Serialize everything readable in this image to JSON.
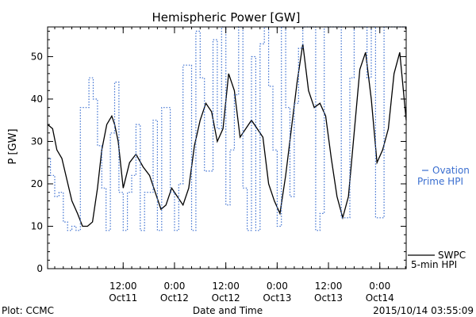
{
  "chart_data": {
    "type": "line",
    "title": "Hemispheric Power [GW]",
    "xlabel": "Date and Time",
    "ylabel": "P [GW]",
    "xlim": [
      "2015-10-10T18:20",
      "2015-10-14T06:10"
    ],
    "ylim": [
      0,
      57
    ],
    "y_ticks": [
      0,
      10,
      20,
      30,
      40,
      50
    ],
    "x_ticks": [
      {
        "time": "2015-10-11T12:00",
        "label": "12:00",
        "sublabel": "Oct11"
      },
      {
        "time": "2015-10-12T00:00",
        "label": "0:00",
        "sublabel": "Oct12"
      },
      {
        "time": "2015-10-12T12:00",
        "label": "12:00",
        "sublabel": "Oct12"
      },
      {
        "time": "2015-10-13T00:00",
        "label": "0:00",
        "sublabel": "Oct13"
      },
      {
        "time": "2015-10-13T12:00",
        "label": "12:00",
        "sublabel": "Oct13"
      },
      {
        "time": "2015-10-14T00:00",
        "label": "0:00",
        "sublabel": "Oct14"
      }
    ],
    "grid": false,
    "legend_placement": "right",
    "series": [
      {
        "name": "SWPC 5-min HPI",
        "label_lines": [
          "SWPC",
          "5-min HPI"
        ],
        "style": "solid",
        "color": "#000000",
        "x": [
          "2015-10-10T18:20",
          "2015-10-10T19:30",
          "2015-10-10T20:30",
          "2015-10-10T21:40",
          "2015-10-10T22:50",
          "2015-10-11T00:00",
          "2015-10-11T01:20",
          "2015-10-11T02:30",
          "2015-10-11T03:40",
          "2015-10-11T04:50",
          "2015-10-11T06:00",
          "2015-10-11T07:00",
          "2015-10-11T08:10",
          "2015-10-11T09:20",
          "2015-10-11T10:00",
          "2015-10-11T10:50",
          "2015-10-11T12:00",
          "2015-10-11T13:30",
          "2015-10-11T15:00",
          "2015-10-11T16:40",
          "2015-10-11T18:10",
          "2015-10-11T19:30",
          "2015-10-11T20:50",
          "2015-10-11T22:00",
          "2015-10-11T23:20",
          "2015-10-12T00:40",
          "2015-10-12T02:00",
          "2015-10-12T03:20",
          "2015-10-12T04:40",
          "2015-10-12T06:00",
          "2015-10-12T07:20",
          "2015-10-12T08:40",
          "2015-10-12T10:00",
          "2015-10-12T11:20",
          "2015-10-12T12:40",
          "2015-10-12T14:00",
          "2015-10-12T15:20",
          "2015-10-12T16:40",
          "2015-10-12T18:00",
          "2015-10-12T19:20",
          "2015-10-12T20:40",
          "2015-10-12T22:00",
          "2015-10-12T23:20",
          "2015-10-13T00:40",
          "2015-10-13T02:00",
          "2015-10-13T03:20",
          "2015-10-13T04:40",
          "2015-10-13T06:00",
          "2015-10-13T07:20",
          "2015-10-13T08:40",
          "2015-10-13T10:00",
          "2015-10-13T11:20",
          "2015-10-13T12:40",
          "2015-10-13T14:00",
          "2015-10-13T15:20",
          "2015-10-13T16:40",
          "2015-10-13T18:00",
          "2015-10-13T19:20",
          "2015-10-13T20:40",
          "2015-10-13T22:00",
          "2015-10-13T23:20",
          "2015-10-14T00:40",
          "2015-10-14T02:00",
          "2015-10-14T03:20",
          "2015-10-14T04:40",
          "2015-10-14T06:10"
        ],
        "y": [
          34,
          33,
          28,
          26,
          21,
          16,
          13,
          10,
          10,
          11,
          19,
          28,
          34,
          36,
          34,
          30,
          19,
          25,
          27,
          24,
          22,
          18,
          14,
          15,
          19,
          17,
          15,
          19,
          29,
          35,
          39,
          37,
          30,
          33,
          46,
          42,
          31,
          33,
          35,
          33,
          31,
          20,
          16,
          13,
          22,
          33,
          44,
          53,
          42,
          38,
          39,
          36,
          26,
          17,
          12,
          17,
          32,
          47,
          51,
          40,
          25,
          28,
          33,
          46,
          51,
          35
        ]
      },
      {
        "name": "Ovation Prime HPI",
        "label_lines": [
          "Ovation",
          "Prime HPI"
        ],
        "style": "dotted",
        "color": "#3b6fd0",
        "x": [
          "2015-10-10T18:20",
          "2015-10-10T19:00",
          "2015-10-10T20:00",
          "2015-10-10T21:00",
          "2015-10-10T22:00",
          "2015-10-10T23:00",
          "2015-10-11T00:00",
          "2015-10-11T01:00",
          "2015-10-11T02:00",
          "2015-10-11T03:00",
          "2015-10-11T04:00",
          "2015-10-11T05:00",
          "2015-10-11T06:00",
          "2015-10-11T07:00",
          "2015-10-11T08:00",
          "2015-10-11T09:00",
          "2015-10-11T10:00",
          "2015-10-11T11:00",
          "2015-10-11T12:00",
          "2015-10-11T13:00",
          "2015-10-11T14:00",
          "2015-10-11T15:00",
          "2015-10-11T16:00",
          "2015-10-11T17:00",
          "2015-10-11T18:00",
          "2015-10-11T19:00",
          "2015-10-11T20:00",
          "2015-10-11T21:00",
          "2015-10-11T22:00",
          "2015-10-11T23:00",
          "2015-10-12T00:00",
          "2015-10-12T01:00",
          "2015-10-12T02:00",
          "2015-10-12T03:00",
          "2015-10-12T04:00",
          "2015-10-12T05:00",
          "2015-10-12T06:00",
          "2015-10-12T07:00",
          "2015-10-12T08:00",
          "2015-10-12T09:00",
          "2015-10-12T10:00",
          "2015-10-12T11:00",
          "2015-10-12T12:00",
          "2015-10-12T13:00",
          "2015-10-12T14:00",
          "2015-10-12T15:00",
          "2015-10-12T16:00",
          "2015-10-12T17:00",
          "2015-10-12T18:00",
          "2015-10-12T19:00",
          "2015-10-12T20:00",
          "2015-10-12T21:00",
          "2015-10-12T22:00",
          "2015-10-12T23:00",
          "2015-10-13T00:00",
          "2015-10-13T01:00",
          "2015-10-13T02:00",
          "2015-10-13T03:00",
          "2015-10-13T04:00",
          "2015-10-13T05:00",
          "2015-10-13T06:00",
          "2015-10-13T07:00",
          "2015-10-13T08:00",
          "2015-10-13T09:00",
          "2015-10-13T10:00",
          "2015-10-13T11:00",
          "2015-10-13T12:00",
          "2015-10-13T13:00",
          "2015-10-13T14:00",
          "2015-10-13T15:00",
          "2015-10-13T16:00",
          "2015-10-13T17:00",
          "2015-10-13T18:00",
          "2015-10-13T19:00",
          "2015-10-13T20:00",
          "2015-10-13T21:00",
          "2015-10-13T22:00",
          "2015-10-13T23:00",
          "2015-10-14T00:00",
          "2015-10-14T01:00",
          "2015-10-14T02:00",
          "2015-10-14T03:00",
          "2015-10-14T04:00",
          "2015-10-14T05:00",
          "2015-10-14T06:10"
        ],
        "y": [
          26,
          22,
          17,
          18,
          11,
          9,
          10,
          9,
          38,
          38,
          45,
          40,
          29,
          19,
          9,
          32,
          44,
          18,
          9,
          18,
          22,
          34,
          9,
          18,
          18,
          35,
          9,
          38,
          38,
          18,
          9,
          20,
          48,
          48,
          9,
          56,
          45,
          23,
          23,
          54,
          33,
          57,
          15,
          28,
          41,
          57,
          19,
          9,
          50,
          9,
          53,
          57,
          43,
          28,
          10,
          57,
          38,
          17,
          39,
          52,
          57,
          57,
          57,
          9,
          13,
          57,
          57,
          57,
          57,
          12,
          12,
          45,
          57,
          57,
          57,
          45,
          57,
          12,
          12,
          57,
          57,
          57,
          57,
          57,
          57
        ]
      }
    ],
    "footer": {
      "left": "Plot: CCMC",
      "right": "2015/10/14 03:55:09"
    }
  }
}
